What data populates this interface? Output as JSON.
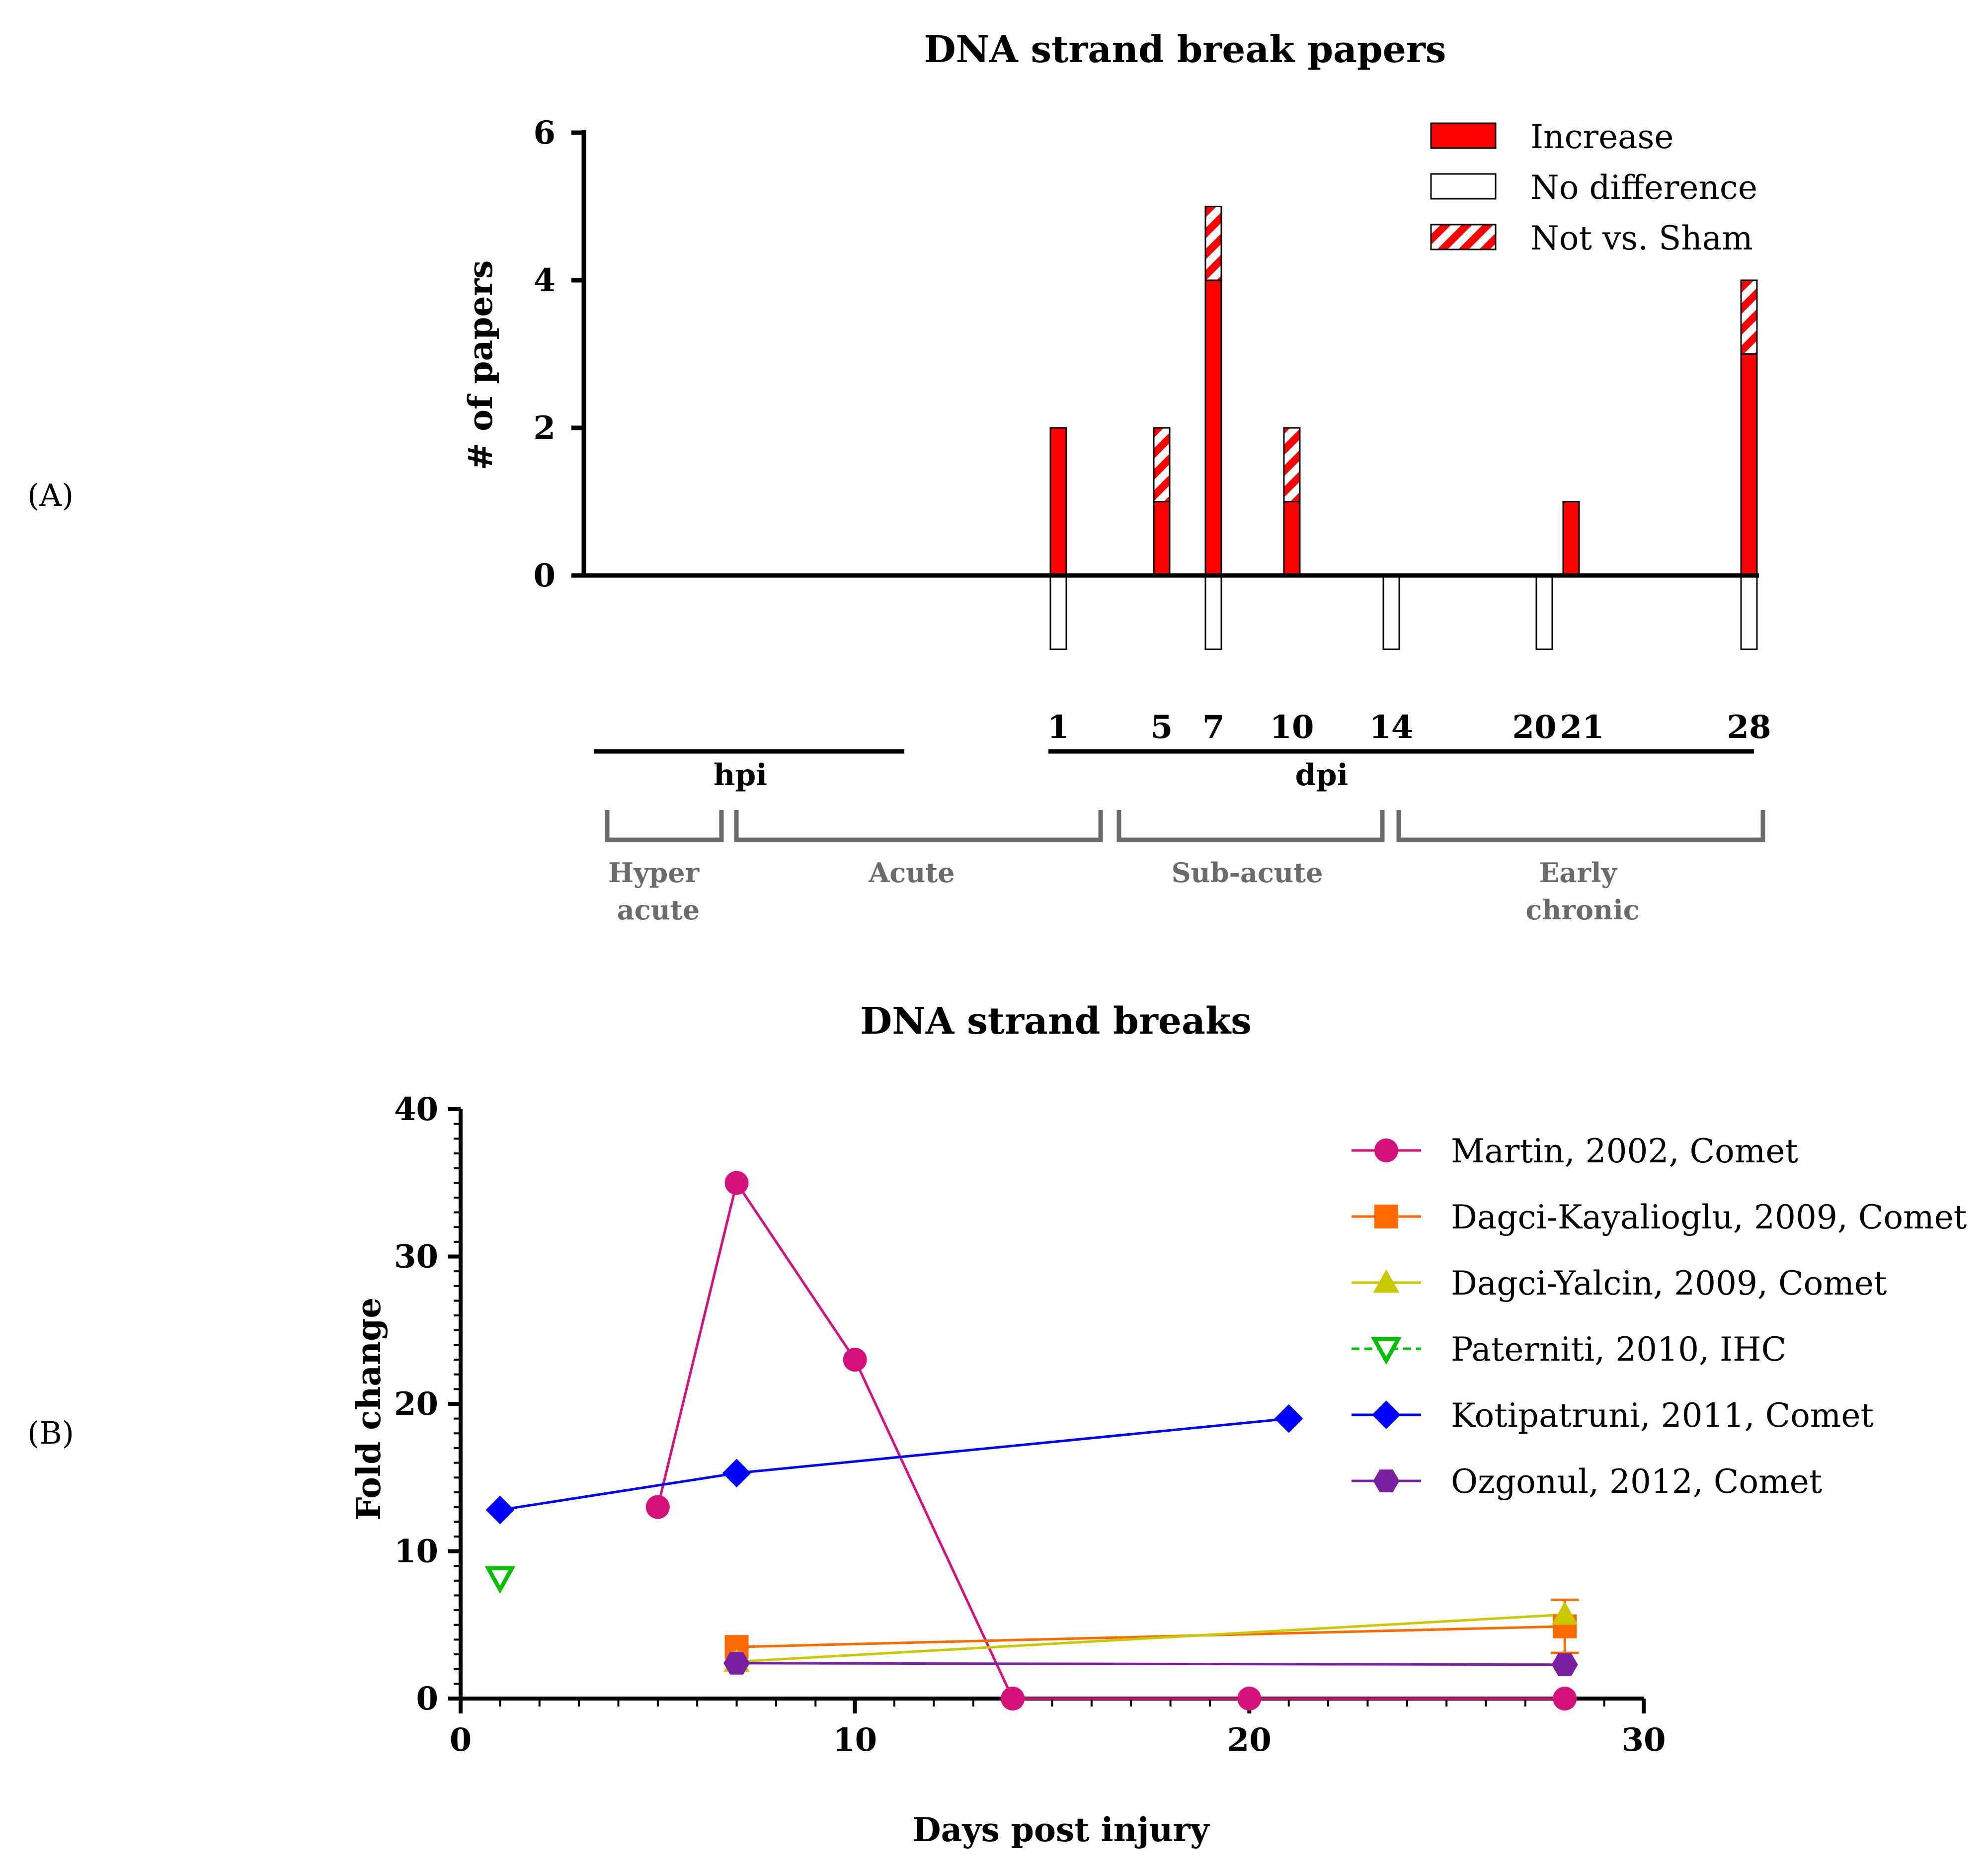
{
  "panel_labels": [
    "(A)",
    "(B)"
  ],
  "colors": {
    "increase": "#ff0000",
    "no_difference": "#ffffff",
    "martin": "#d4107a",
    "dagci_kayalioglu": "#ff6a00",
    "dagci_yalcin": "#c8c800",
    "paterniti": "#00c000",
    "kotipatruni": "#0000ff",
    "ozgonul": "#7a1fa2"
  },
  "timeline": {
    "dpi_ticks": [
      "1",
      "5",
      "7",
      "10",
      "14",
      "20",
      "21",
      "28"
    ],
    "hpi_label": "hpi",
    "dpi_label": "dpi",
    "phases": [
      {
        "lines": [
          "Hyper",
          "acute"
        ]
      },
      {
        "lines": [
          "Acute"
        ]
      },
      {
        "lines": [
          "Sub-acute"
        ]
      },
      {
        "lines": [
          "Early",
          "chronic"
        ]
      }
    ]
  },
  "chart_data": [
    {
      "type": "bar",
      "title": "DNA strand break papers",
      "xlabel": "",
      "ylabel": "# of papers",
      "ylim": [
        -1,
        6
      ],
      "yticks": [
        0,
        2,
        4,
        6
      ],
      "categories": [
        "1",
        "5",
        "7",
        "10",
        "14",
        "20",
        "21",
        "28"
      ],
      "series": [
        {
          "name": "Increase",
          "values": [
            2,
            1,
            4,
            1,
            0,
            0,
            1,
            3
          ]
        },
        {
          "name": "Not vs. Sham",
          "values": [
            0,
            1,
            1,
            1,
            0,
            0,
            0,
            1
          ]
        },
        {
          "name": "No difference",
          "values": [
            1,
            0,
            1,
            0,
            1,
            1,
            0,
            1
          ]
        }
      ],
      "legend_position": "top-right",
      "grid": false
    },
    {
      "type": "line",
      "title": "DNA strand breaks",
      "xlabel": "Days post injury",
      "ylabel": "Fold change",
      "xlim": [
        0,
        30
      ],
      "ylim": [
        0,
        40
      ],
      "xticks": [
        0,
        10,
        20,
        30
      ],
      "yticks": [
        0,
        10,
        20,
        30,
        40
      ],
      "legend_position": "top-right",
      "grid": false,
      "series": [
        {
          "name": "Martin, 2002, Comet",
          "marker": "circle",
          "x": [
            5,
            7,
            10,
            14,
            20,
            28
          ],
          "y": [
            13,
            35,
            23,
            0,
            0,
            0
          ]
        },
        {
          "name": "Dagci-Kayalioglu, 2009, Comet",
          "marker": "square",
          "x": [
            7,
            28
          ],
          "y": [
            3.5,
            4.9
          ],
          "error": [
            0,
            1.8
          ]
        },
        {
          "name": "Dagci-Yalcin, 2009, Comet",
          "marker": "triangle",
          "x": [
            7,
            28
          ],
          "y": [
            2.5,
            5.7
          ]
        },
        {
          "name": "Paterniti, 2010, IHC",
          "marker": "triangle-down-open",
          "dashed": true,
          "x": [
            1
          ],
          "y": [
            8.2
          ]
        },
        {
          "name": "Kotipatruni, 2011, Comet",
          "marker": "diamond",
          "x": [
            1,
            7,
            21
          ],
          "y": [
            12.8,
            15.3,
            19
          ]
        },
        {
          "name": "Ozgonul, 2012, Comet",
          "marker": "hexagon",
          "x": [
            7,
            28
          ],
          "y": [
            2.4,
            2.3
          ]
        }
      ]
    }
  ]
}
